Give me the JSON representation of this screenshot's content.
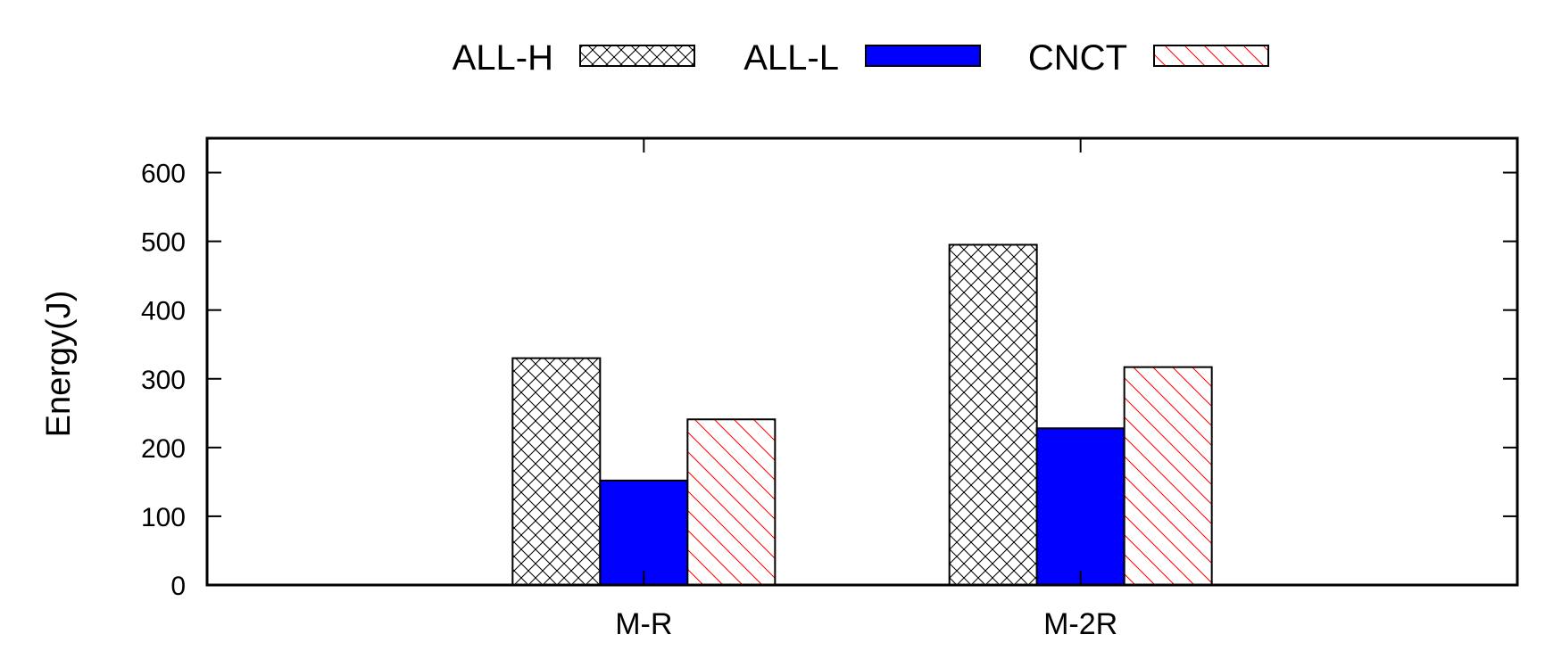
{
  "chart_data": {
    "type": "bar",
    "title": "",
    "xlabel": "",
    "ylabel": "Energy(J)",
    "categories": [
      "M-R",
      "M-2R"
    ],
    "series": [
      {
        "name": "ALL-H",
        "values": [
          330,
          495
        ],
        "pattern": "crosshatch",
        "color": "#000000"
      },
      {
        "name": "ALL-L",
        "values": [
          152,
          228
        ],
        "pattern": "solid",
        "color": "#0000ff"
      },
      {
        "name": "CNCT",
        "values": [
          241,
          317
        ],
        "pattern": "diagonal",
        "color": "#ff0000"
      }
    ],
    "ylim": [
      0,
      650
    ],
    "yticks": [
      0,
      100,
      200,
      300,
      400,
      500,
      600
    ],
    "grid": false,
    "legend": "top-center"
  }
}
